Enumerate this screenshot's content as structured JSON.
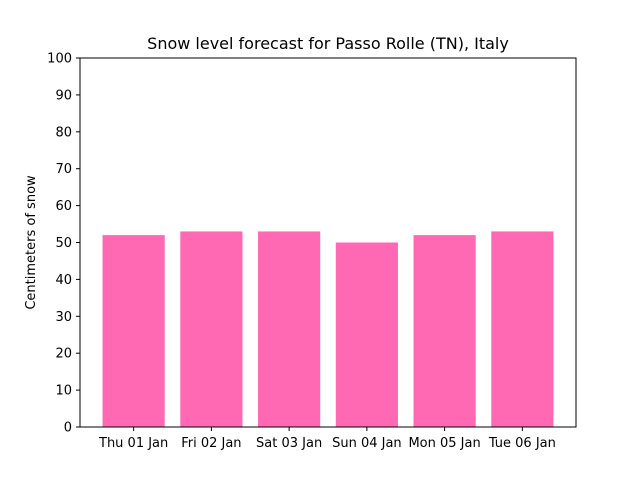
{
  "chart_data": {
    "type": "bar",
    "title": "Snow level forecast for Passo Rolle (TN), Italy",
    "xlabel": "",
    "ylabel": "Centimeters of snow",
    "categories": [
      "Thu 01 Jan",
      "Fri 02 Jan",
      "Sat 03 Jan",
      "Sun 04 Jan",
      "Mon 05 Jan",
      "Tue 06 Jan"
    ],
    "values": [
      52,
      53,
      53,
      50,
      52,
      53
    ],
    "ylim": [
      0,
      100
    ],
    "yticks": [
      0,
      10,
      20,
      30,
      40,
      50,
      60,
      70,
      80,
      90,
      100
    ],
    "bar_color": "#ff69b4",
    "grid": false,
    "legend": "none"
  }
}
